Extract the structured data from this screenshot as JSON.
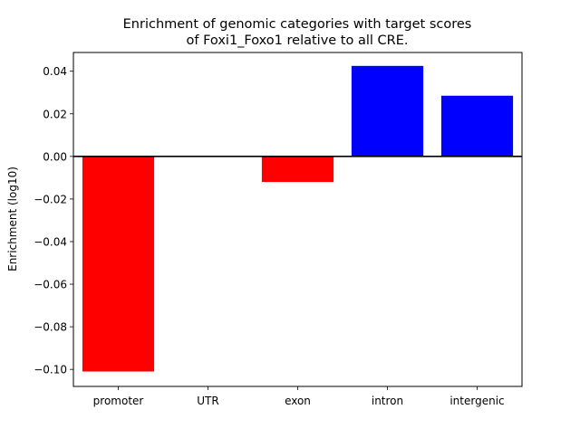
{
  "chart_data": {
    "type": "bar",
    "title_lines": [
      "Enrichment of genomic categories with target scores",
      "of Foxi1_Foxo1 relative to all CRE."
    ],
    "xlabel": "",
    "ylabel": "Enrichment (log10)",
    "categories": [
      "promoter",
      "UTR",
      "exon",
      "intron",
      "intergenic"
    ],
    "values": [
      -0.101,
      0.0,
      -0.012,
      0.0425,
      0.0285
    ],
    "bar_colors": [
      "#ff0000",
      "#ff0000",
      "#ff0000",
      "#0000ff",
      "#0000ff"
    ],
    "ylim": [
      -0.108,
      0.0488
    ],
    "yticks": [
      -0.1,
      -0.08,
      -0.06,
      -0.04,
      -0.02,
      0.0,
      0.02,
      0.04
    ],
    "ytick_labels": [
      "−0.10",
      "−0.08",
      "−0.06",
      "−0.04",
      "−0.02",
      "0.00",
      "0.02",
      "0.04"
    ],
    "baseline": 0.0,
    "grid": false,
    "legend": "none"
  }
}
